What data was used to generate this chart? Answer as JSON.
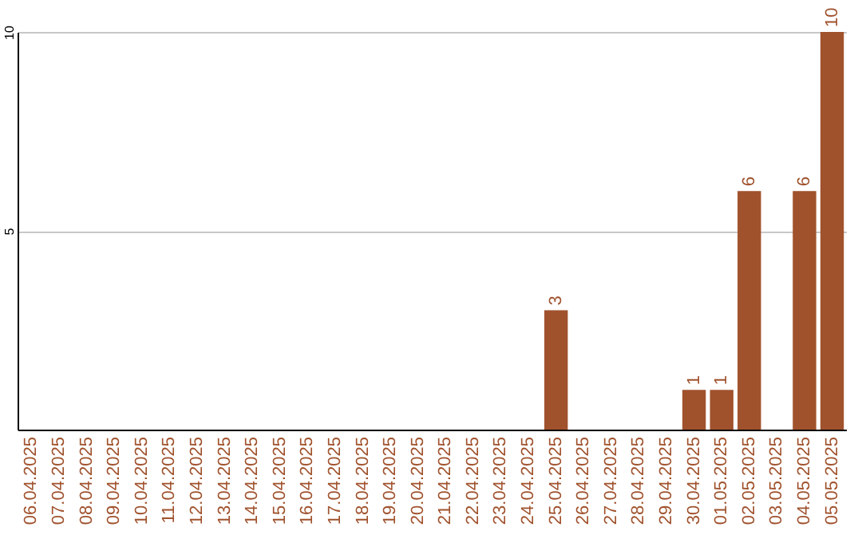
{
  "chart_data": {
    "type": "bar",
    "categories": [
      "06.04.2025",
      "07.04.2025",
      "08.04.2025",
      "09.04.2025",
      "10.04.2025",
      "11.04.2025",
      "12.04.2025",
      "13.04.2025",
      "14.04.2025",
      "15.04.2025",
      "16.04.2025",
      "17.04.2025",
      "18.04.2025",
      "19.04.2025",
      "20.04.2025",
      "21.04.2025",
      "22.04.2025",
      "23.04.2025",
      "24.04.2025",
      "25.04.2025",
      "26.04.2025",
      "27.04.2025",
      "28.04.2025",
      "29.04.2025",
      "30.04.2025",
      "01.05.2025",
      "02.05.2025",
      "03.05.2025",
      "04.05.2025",
      "05.05.2025"
    ],
    "values": [
      0,
      0,
      0,
      0,
      0,
      0,
      0,
      0,
      0,
      0,
      0,
      0,
      0,
      0,
      0,
      0,
      0,
      0,
      0,
      3,
      0,
      0,
      0,
      0,
      1,
      1,
      6,
      0,
      6,
      10
    ],
    "value_labels": [
      null,
      null,
      null,
      null,
      null,
      null,
      null,
      null,
      null,
      null,
      null,
      null,
      null,
      null,
      null,
      null,
      null,
      null,
      null,
      "3",
      null,
      null,
      null,
      null,
      "1",
      "1",
      "6",
      null,
      "6",
      "10"
    ],
    "color": "#a0522d",
    "ylim": [
      0,
      10
    ],
    "yticks": [
      5,
      10
    ],
    "grid": "y"
  }
}
